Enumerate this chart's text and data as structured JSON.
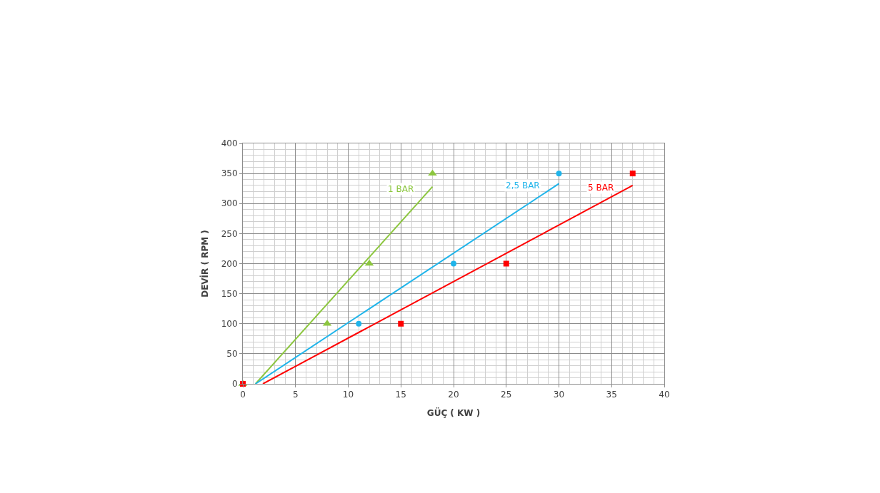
{
  "chart_data": {
    "type": "scatter",
    "xlabel": "GÜÇ ( KW )",
    "ylabel": "DEVİR ( RPM )",
    "xlim": [
      0,
      40
    ],
    "ylim": [
      0,
      400
    ],
    "xticks": [
      0,
      5,
      10,
      15,
      20,
      25,
      30,
      35,
      40
    ],
    "yticks": [
      0,
      50,
      100,
      150,
      200,
      250,
      300,
      350,
      400
    ],
    "grid": true,
    "legend": false,
    "series": [
      {
        "marker": "triangle",
        "color": "#8cc63f",
        "x": [
          0,
          8,
          12,
          18
        ],
        "values": [
          0,
          100,
          200,
          350
        ]
      },
      {
        "marker": "circle",
        "color": "#1fb4ea",
        "x": [
          11,
          20,
          30
        ],
        "values": [
          100,
          200,
          350
        ]
      },
      {
        "marker": "square",
        "color": "#ff0000",
        "x": [
          0,
          15,
          25,
          37
        ],
        "values": [
          0,
          100,
          200,
          350
        ]
      },
      {
        "type": "line",
        "name": "1 BAR",
        "color": "#8cc63f",
        "x": [
          1.2,
          18
        ],
        "values": [
          0,
          328
        ]
      },
      {
        "type": "line",
        "name": "2,5 BAR",
        "color": "#1fb4ea",
        "x": [
          1.2,
          30
        ],
        "values": [
          0,
          333
        ]
      },
      {
        "type": "line",
        "name": "5 BAR",
        "color": "#ff0000",
        "x": [
          1.9,
          37
        ],
        "values": [
          0,
          330
        ]
      }
    ]
  }
}
